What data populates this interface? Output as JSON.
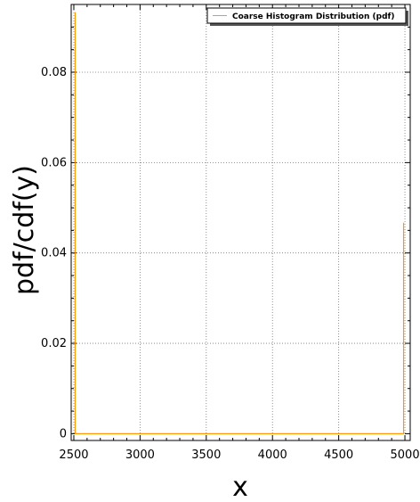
{
  "chart_data": {
    "type": "line",
    "title": "",
    "xlabel": "x",
    "ylabel": "pdf/cdf(y)",
    "xlim": [
      2480,
      5040
    ],
    "ylim": [
      -0.0015,
      0.095
    ],
    "x_ticks": [
      2500,
      3000,
      3500,
      4000,
      4500,
      5000
    ],
    "x_tick_labels": [
      "2500",
      "3000",
      "3500",
      "4000",
      "4500",
      "5000"
    ],
    "y_ticks": [
      0,
      0.02,
      0.04,
      0.06,
      0.08
    ],
    "y_tick_labels": [
      "0",
      "0.02",
      "0.04",
      "0.06",
      "0.08"
    ],
    "grid": true,
    "legend_position": "top-right",
    "series": [
      {
        "name": "Coarse Histogram Distribution (pdf)",
        "color": "#ff9900",
        "x": [
          2510,
          2510,
          2510,
          4990,
          4990,
          4990
        ],
        "y": [
          0,
          0.0933,
          0,
          0,
          0.0467,
          0
        ]
      }
    ]
  }
}
